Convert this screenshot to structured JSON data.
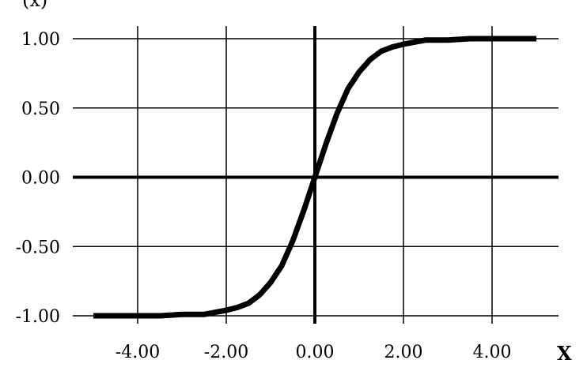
{
  "chart_data": {
    "type": "line",
    "title": "",
    "xlabel": "X",
    "ylabel": "(x)",
    "xlim": [
      -5.0,
      5.0
    ],
    "ylim": [
      -1.0,
      1.0
    ],
    "x_ticks": [
      -4.0,
      -2.0,
      0.0,
      2.0,
      4.0
    ],
    "x_tick_labels": [
      "-4.00",
      "-2.00",
      "0.00",
      "2.00",
      "4.00"
    ],
    "y_ticks": [
      1.0,
      0.5,
      0.0,
      -0.5,
      -1.0
    ],
    "y_tick_labels": [
      "1.00",
      "0.50",
      "0.00",
      "-0.50",
      "-1.00"
    ],
    "grid": true,
    "legend": "none",
    "series": [
      {
        "x": [
          -5.0,
          -4.5,
          -4.0,
          -3.5,
          -3.0,
          -2.5,
          -2.0,
          -1.75,
          -1.5,
          -1.25,
          -1.0,
          -0.75,
          -0.5,
          -0.25,
          0.0,
          0.25,
          0.5,
          0.75,
          1.0,
          1.25,
          1.5,
          1.75,
          2.0,
          2.5,
          3.0,
          3.5,
          4.0,
          4.5,
          5.0
        ],
        "y": [
          -1.0,
          -1.0,
          -1.0,
          -1.0,
          -0.99,
          -0.99,
          -0.96,
          -0.94,
          -0.91,
          -0.85,
          -0.76,
          -0.64,
          -0.46,
          -0.24,
          0.0,
          0.24,
          0.46,
          0.64,
          0.76,
          0.85,
          0.91,
          0.94,
          0.96,
          0.99,
          0.99,
          1.0,
          1.0,
          1.0,
          1.0
        ]
      }
    ],
    "colors": {
      "curve": "#000000",
      "grid": "#000000",
      "axes": "#000000"
    }
  }
}
